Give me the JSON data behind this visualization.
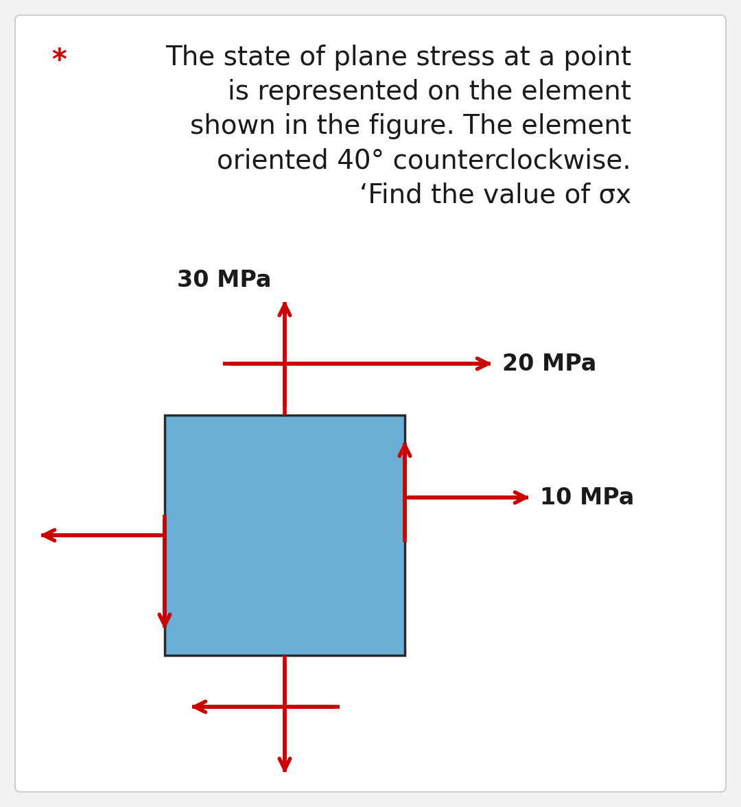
{
  "bg_color": "#f2f2f2",
  "panel_bg": "#ffffff",
  "text_color": "#1a1a1a",
  "star_color": "#cc0000",
  "arrow_color": "#cc0000",
  "box_color": "#6aaed6",
  "box_edge_color": "#2a2a2a",
  "title_lines": [
    "The state of plane stress at a point",
    "is represented on the element",
    "shown in the figure. The element",
    "oriented 40° counterclockwise.",
    "‘Find the value of σx"
  ],
  "label_30": "30 MPa",
  "label_20": "20 MPa",
  "label_10": "10 MPa",
  "font_size_title": 28,
  "font_size_labels": 24,
  "star_font_size": 30
}
